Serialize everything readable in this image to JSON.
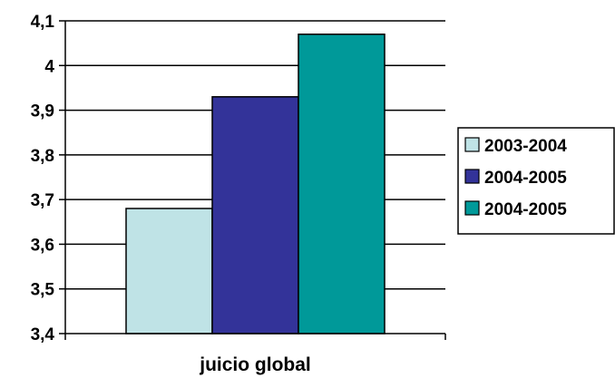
{
  "chart_data": {
    "type": "bar",
    "categories": [
      "juicio global"
    ],
    "series": [
      {
        "name": "2003-2004",
        "values": [
          3.68
        ],
        "color": "#bfe3e6"
      },
      {
        "name": "2004-2005",
        "values": [
          3.93
        ],
        "color": "#333399"
      },
      {
        "name": "2004-2005",
        "values": [
          4.07
        ],
        "color": "#009999"
      }
    ],
    "ylim": [
      3.4,
      4.1
    ],
    "yticks": [
      3.4,
      3.5,
      3.6,
      3.7,
      3.8,
      3.9,
      4.0,
      4.1
    ],
    "ytick_labels": [
      "3,4",
      "3,5",
      "3,6",
      "3,7",
      "3,8",
      "3,9",
      "4",
      "4,1"
    ],
    "grid": true,
    "legend_position": "right",
    "title": "",
    "xlabel": "",
    "ylabel": ""
  }
}
